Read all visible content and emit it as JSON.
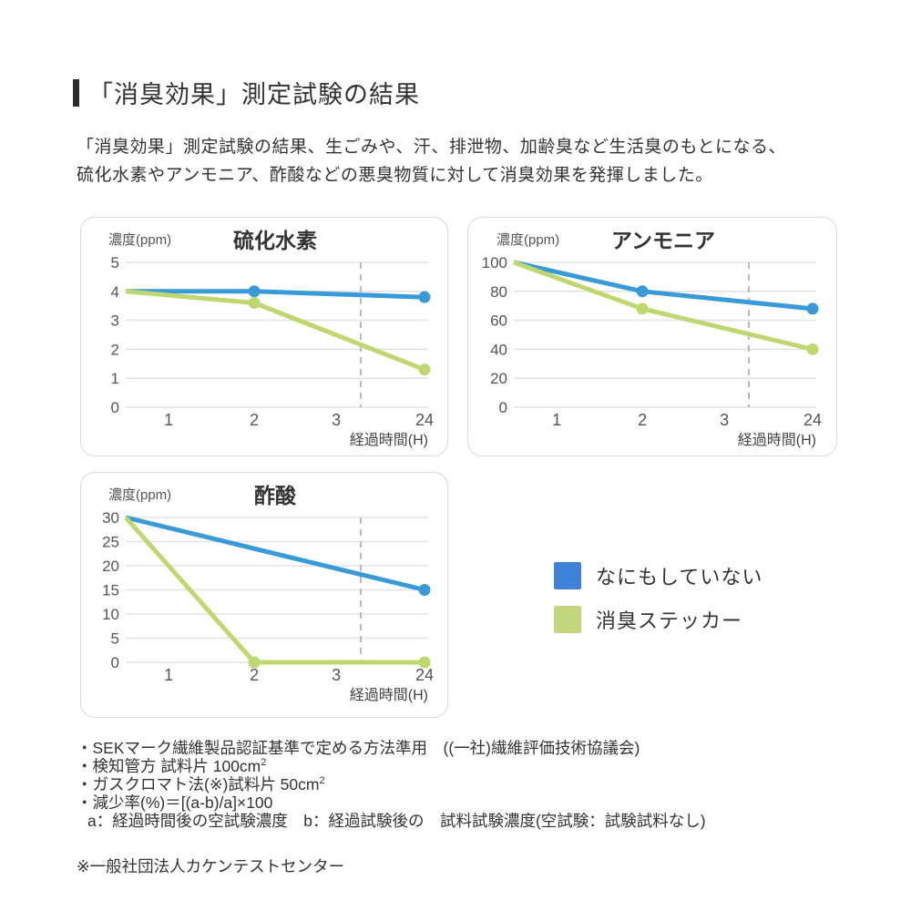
{
  "page": {
    "title": "「消臭効果」測定試験の結果",
    "intro_line1": "「消臭効果」測定試験の結果、生ごみや、汗、排泄物、加齢臭など生活臭のもとになる、",
    "intro_line2": "硫化水素やアンモニア、酢酸などの悪臭物質に対して消臭効果を発揮しました。"
  },
  "colors": {
    "line_blue": "#389bd8",
    "line_green": "#bfd76f",
    "legend_blue": "#3e82d8",
    "legend_green": "#c2d67c",
    "grid": "#e2e2e2",
    "dashed": "#b9b9b9",
    "text_dark": "#333333",
    "text_mid": "#555555",
    "card_border": "#d9d9d9"
  },
  "legend": {
    "items": [
      {
        "label": "なにもしていない",
        "color_key": "legend_blue"
      },
      {
        "label": "消臭ステッカー",
        "color_key": "legend_green"
      }
    ]
  },
  "chart_layout": {
    "x_fractions": {
      "0": 0.0,
      "1": 0.142,
      "2": 0.425,
      "3": 0.696,
      "24": 0.988
    },
    "axis_break_fraction": 0.777,
    "grid": true,
    "legend_position": "outside-right"
  },
  "chart_data": [
    {
      "type": "line",
      "title": "硫化水素",
      "ylabel": "濃度(ppm)",
      "xlabel": "経過時間(H)",
      "ylim": [
        0,
        5
      ],
      "yticks": [
        0,
        1,
        2,
        3,
        4,
        5
      ],
      "xticks": [
        "1",
        "2",
        "3",
        "24"
      ],
      "axis_break_between": [
        "3",
        "24"
      ],
      "series": [
        {
          "name": "なにもしていない",
          "color_key": "line_blue",
          "points": [
            {
              "t": "0",
              "v": 4.0,
              "dot": false
            },
            {
              "t": "2",
              "v": 4.0,
              "dot": true
            },
            {
              "t": "24",
              "v": 3.8,
              "dot": true
            }
          ]
        },
        {
          "name": "消臭ステッカー",
          "color_key": "line_green",
          "points": [
            {
              "t": "0",
              "v": 4.0,
              "dot": false
            },
            {
              "t": "2",
              "v": 3.6,
              "dot": true
            },
            {
              "t": "24",
              "v": 1.3,
              "dot": true
            }
          ]
        }
      ]
    },
    {
      "type": "line",
      "title": "アンモニア",
      "ylabel": "濃度(ppm)",
      "xlabel": "経過時間(H)",
      "ylim": [
        0,
        100
      ],
      "yticks": [
        0,
        20,
        40,
        60,
        80,
        100
      ],
      "xticks": [
        "1",
        "2",
        "3",
        "24"
      ],
      "axis_break_between": [
        "3",
        "24"
      ],
      "series": [
        {
          "name": "なにもしていない",
          "color_key": "line_blue",
          "points": [
            {
              "t": "0",
              "v": 100,
              "dot": false
            },
            {
              "t": "2",
              "v": 80,
              "dot": true
            },
            {
              "t": "24",
              "v": 68,
              "dot": true
            }
          ]
        },
        {
          "name": "消臭ステッカー",
          "color_key": "line_green",
          "points": [
            {
              "t": "0",
              "v": 100,
              "dot": false
            },
            {
              "t": "2",
              "v": 68,
              "dot": true
            },
            {
              "t": "24",
              "v": 40,
              "dot": true
            }
          ]
        }
      ]
    },
    {
      "type": "line",
      "title": "酢酸",
      "ylabel": "濃度(ppm)",
      "xlabel": "経過時間(H)",
      "ylim": [
        0,
        30
      ],
      "yticks": [
        0,
        5,
        10,
        15,
        20,
        25,
        30
      ],
      "xticks": [
        "1",
        "2",
        "3",
        "24"
      ],
      "axis_break_between": [
        "3",
        "24"
      ],
      "series": [
        {
          "name": "なにもしていない",
          "color_key": "line_blue",
          "points": [
            {
              "t": "0",
              "v": 30,
              "dot": false
            },
            {
              "t": "24",
              "v": 15,
              "dot": true
            }
          ]
        },
        {
          "name": "消臭ステッカー",
          "color_key": "line_green",
          "points": [
            {
              "t": "0",
              "v": 30,
              "dot": false
            },
            {
              "t": "2",
              "v": 0,
              "dot": true
            },
            {
              "t": "24",
              "v": 0,
              "dot": true
            }
          ]
        }
      ]
    }
  ],
  "footnotes": {
    "bullets": [
      "・SEKマーク繊維製品認証基準で定める方法準用　((一社)繊維評価技術協議会)",
      "・検知管方 試料片 100cm",
      "・ガスクロマト法(※)試料片 50cm",
      "・減少率(%)＝[(a-b)/a]×100"
    ],
    "sup2": "2",
    "sub_line": "a：経過時間後の空試験濃度　b：経過試験後の　試料試験濃度(空試験：試験試料なし)",
    "asterisk_note": "※一般社団法人カケンテストセンター"
  }
}
